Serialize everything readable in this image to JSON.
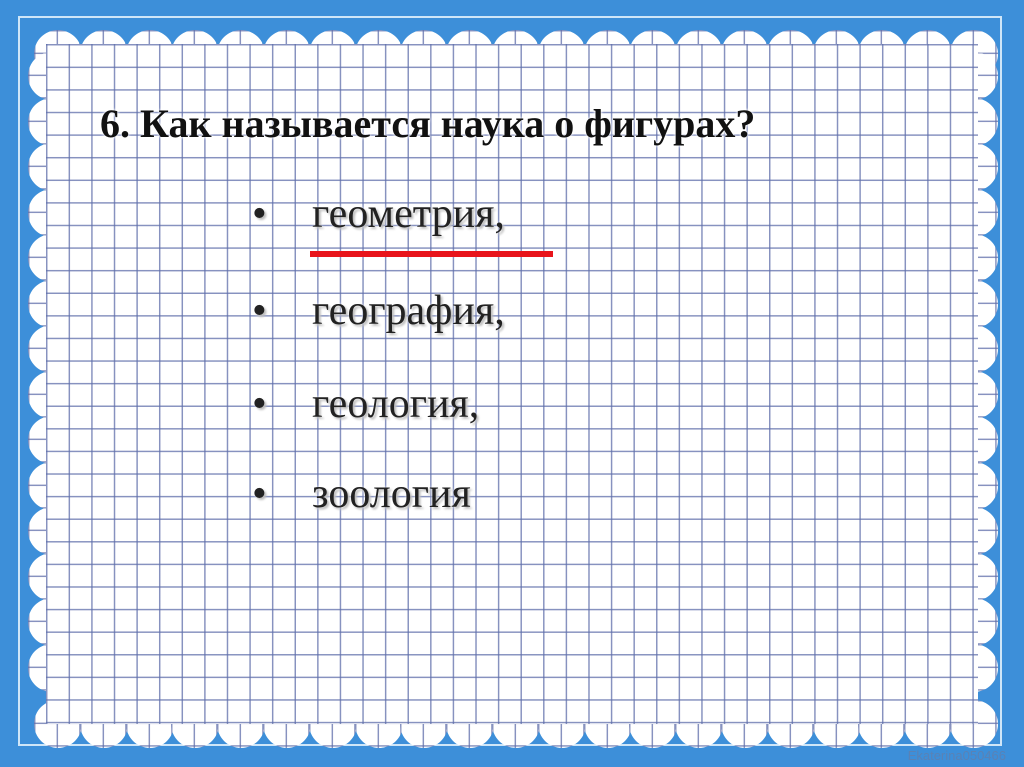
{
  "slide": {
    "title": "6. Как называется наука о фигурах?",
    "options": [
      {
        "text": "геометрия,",
        "bullet": "•",
        "correct": true
      },
      {
        "text": "география,",
        "bullet": "•"
      },
      {
        "text": "геология,",
        "bullet": "•"
      },
      {
        "text": "зоология",
        "bullet": "•"
      }
    ],
    "watermark": "Ekaterina050466"
  },
  "colors": {
    "background": "#3d8fd9",
    "underline": "#e8141b",
    "grid": "#5f6eaa"
  }
}
